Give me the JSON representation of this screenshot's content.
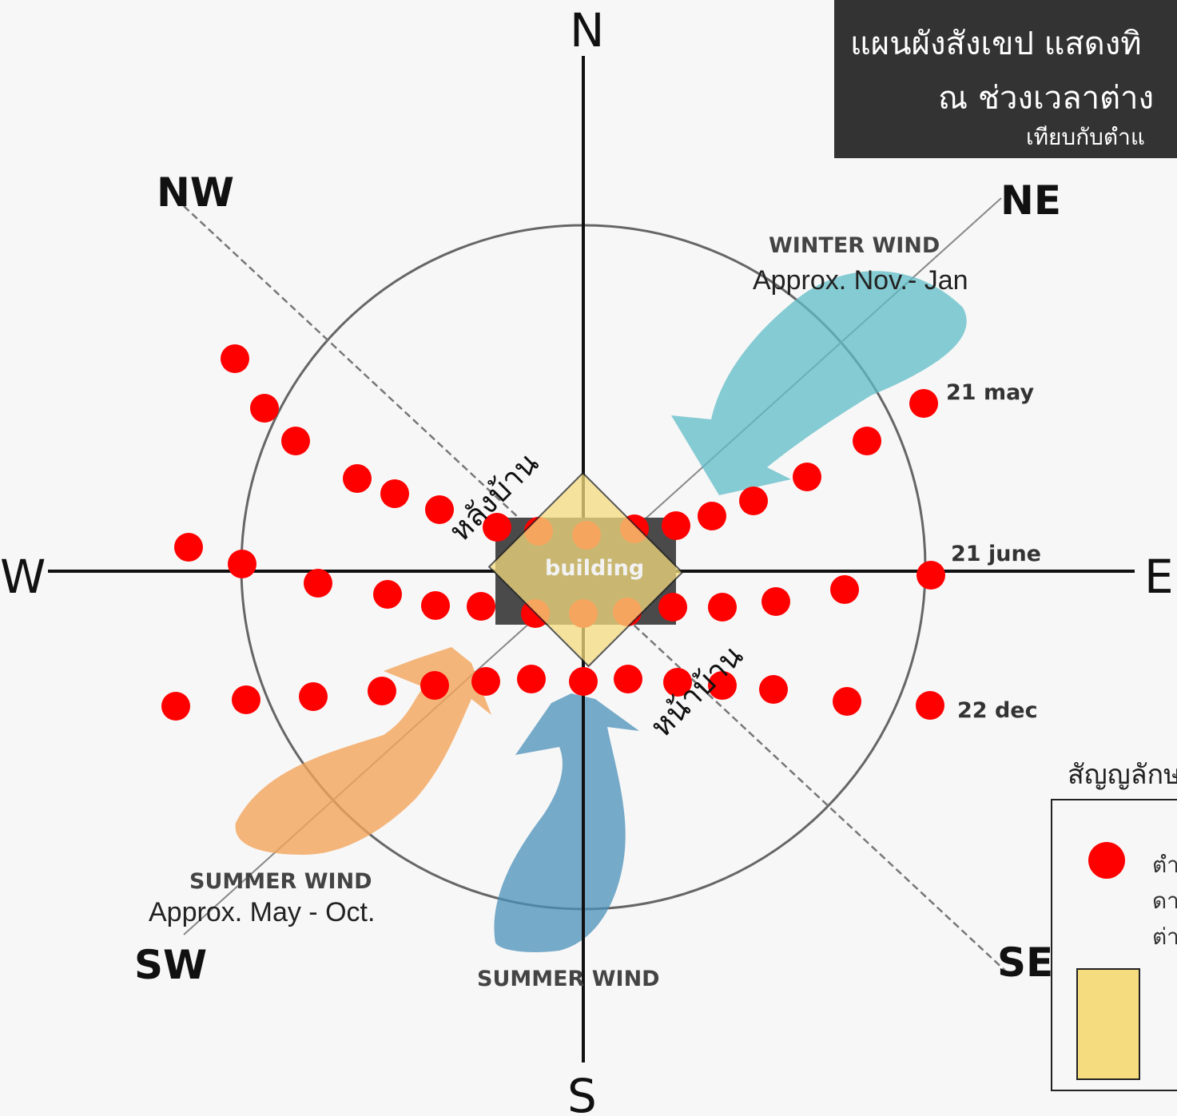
{
  "title": {
    "line1": "แผนผังสังเขป แสดงทิ",
    "line2": "ณ ช่วงเวลาต่าง",
    "line3": "เทียบกับตำแ"
  },
  "compass": {
    "n": "N",
    "s": "S",
    "e": "E",
    "w": "W",
    "ne": "NE",
    "nw": "NW",
    "se": "SE",
    "sw": "SW"
  },
  "winds": {
    "winter": {
      "title": "WINTER WIND",
      "period": "Approx. Nov.- Jan",
      "color": "#5fbcc7"
    },
    "summer_sw": {
      "title": "SUMMER WIND",
      "period": "Approx. May - Oct.",
      "color": "#f2a45a"
    },
    "summer_s": {
      "title": "SUMMER WIND",
      "color": "#4a90b8"
    }
  },
  "sun_paths": {
    "color": "#ff0000",
    "may": "21 may",
    "june": "21 june",
    "dec": "22 dec"
  },
  "building": {
    "label": "building",
    "back_label": "หลังบ้าน",
    "front_label": "หน้าบ้าน",
    "footprint_color": "#4a4a4a",
    "house_color": "#f4dc7f"
  },
  "legend": {
    "heading": "สัญญลักษ",
    "dot_text_1": "ตำ",
    "dot_text_2": "ดา",
    "dot_text_3": "ต่า"
  }
}
